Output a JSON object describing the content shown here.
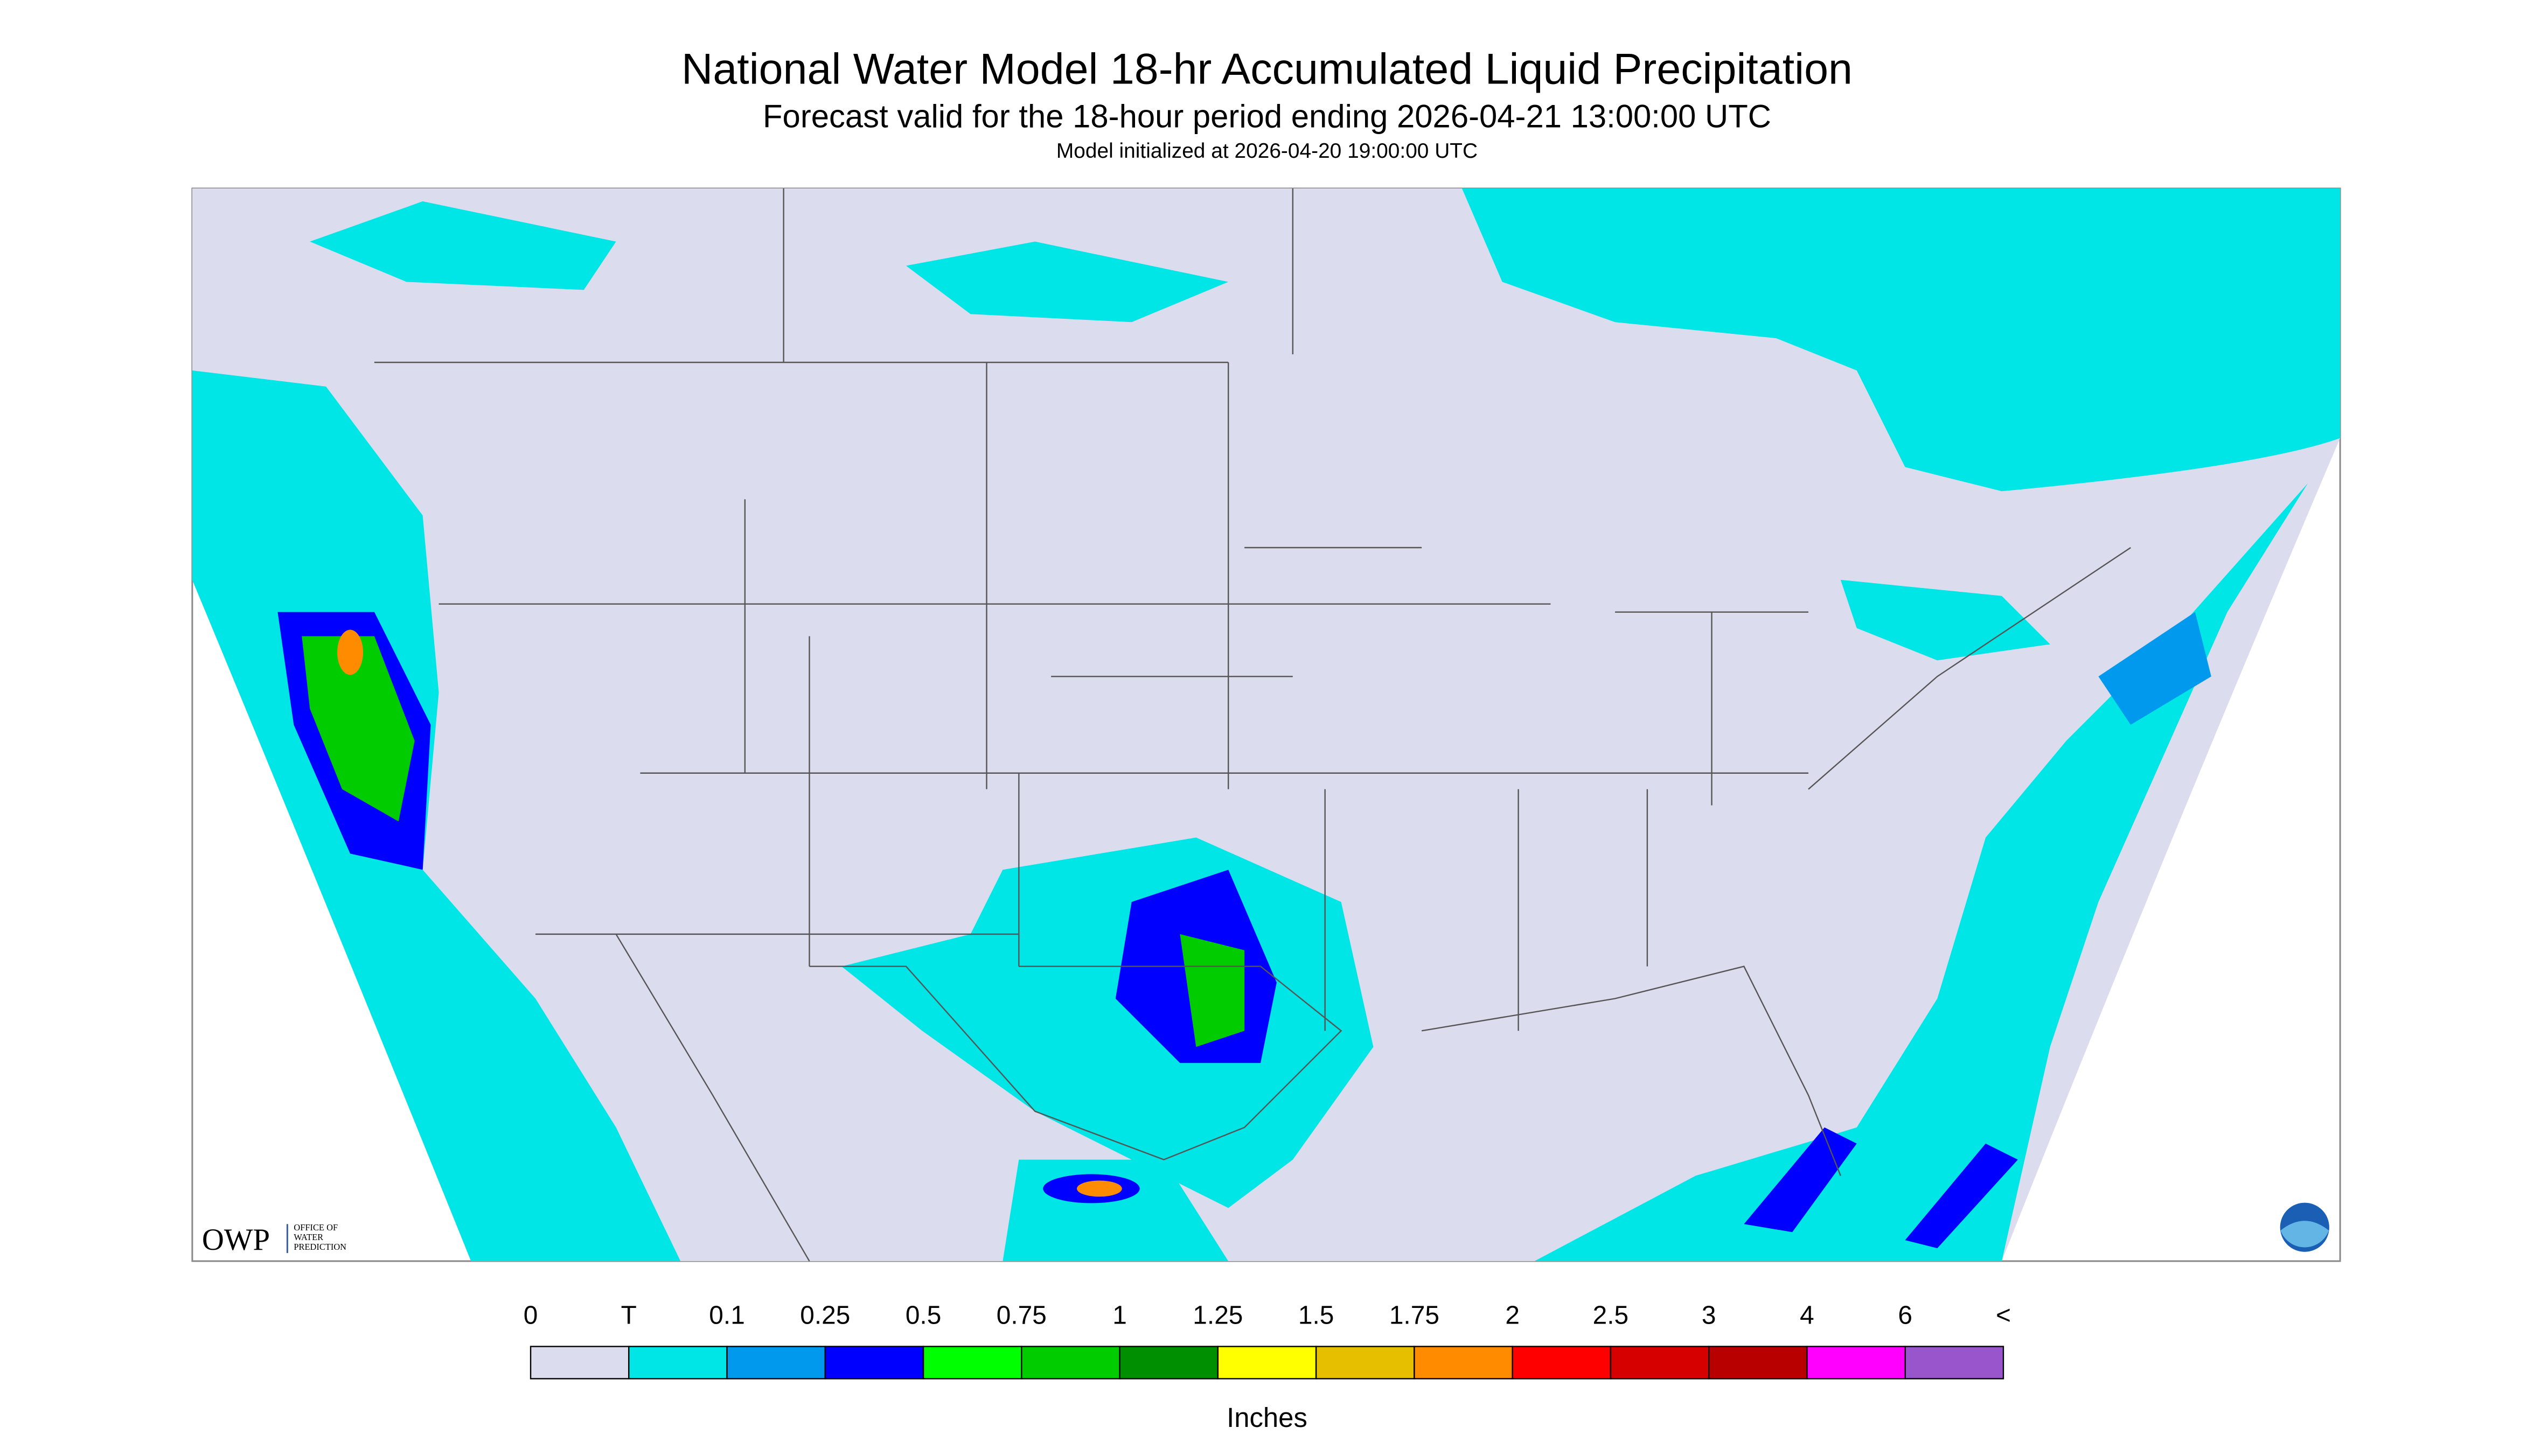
{
  "header": {
    "title": "National Water Model 18-hr Accumulated Liquid Precipitation",
    "subtitle": "Forecast valid for the 18-hour period ending 2026-04-21 13:00:00 UTC",
    "note": "Model initialized at 2026-04-20 19:00:00 UTC"
  },
  "logo": {
    "name": "OWP",
    "line1": "OFFICE OF",
    "line2": "WATER",
    "line3": "PREDICTION"
  },
  "legend": {
    "labels": [
      "0",
      "T",
      "0.1",
      "0.25",
      "0.5",
      "0.75",
      "1",
      "1.25",
      "1.5",
      "1.75",
      "2",
      "2.5",
      "3",
      "4",
      "6",
      "<"
    ],
    "colors": [
      "#dcdcef",
      "#00e5e5",
      "#0099ee",
      "#0000ff",
      "#00ff00",
      "#00cc00",
      "#008f00",
      "#ffff00",
      "#e6bf00",
      "#ff8c00",
      "#ff0000",
      "#d60000",
      "#b80000",
      "#ff00ff",
      "#9955cc"
    ],
    "unit": "Inches"
  }
}
